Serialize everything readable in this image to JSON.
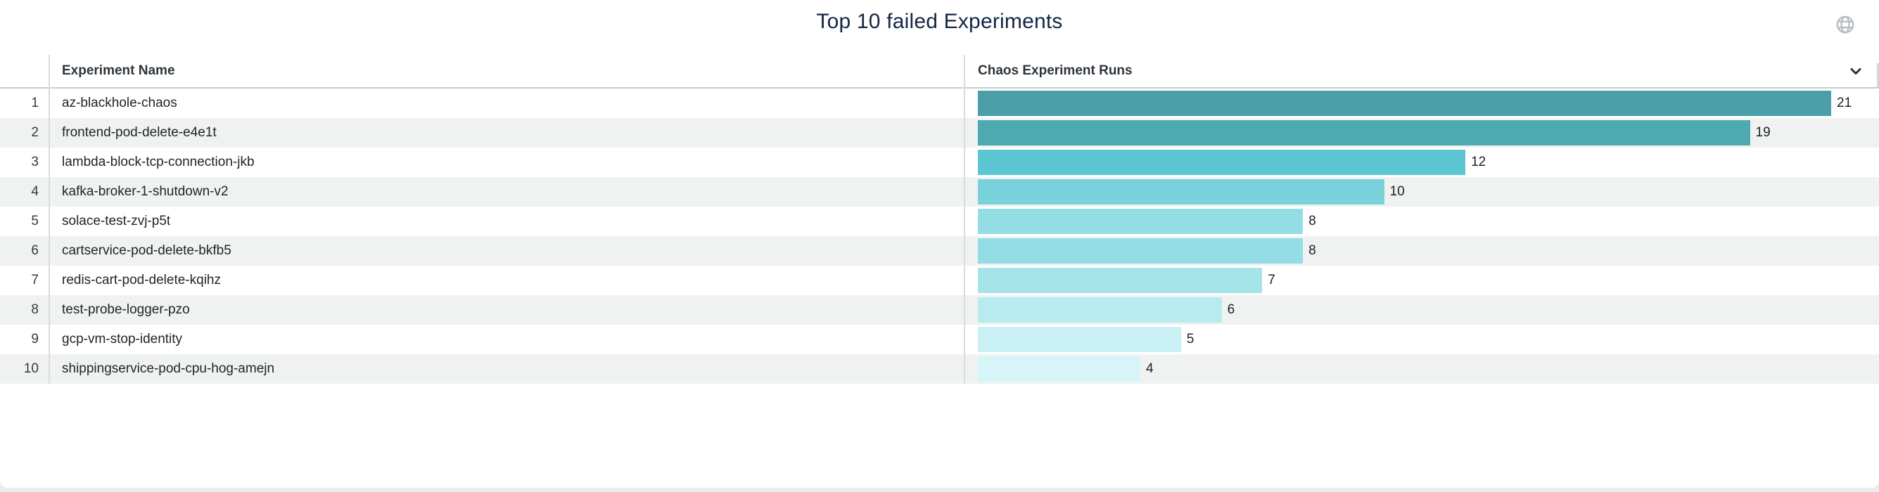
{
  "panel": {
    "title": "Top 10 failed Experiments"
  },
  "icons": {
    "globe": "globe-icon",
    "sort": "chevron-down-icon",
    "globe_color": "#b9bdc3",
    "chevron_color": "#2b3238"
  },
  "table": {
    "columns": {
      "name": "Experiment Name",
      "runs": "Chaos Experiment Runs"
    },
    "rows": [
      {
        "rank": "1",
        "name": "az-blackhole-chaos",
        "runs": 21,
        "color": "#4A9FA8"
      },
      {
        "rank": "2",
        "name": "frontend-pod-delete-e4e1t",
        "runs": 19,
        "color": "#4FA9B1"
      },
      {
        "rank": "3",
        "name": "lambda-block-tcp-connection-jkb",
        "runs": 12,
        "color": "#5BC5D1"
      },
      {
        "rank": "4",
        "name": "kafka-broker-1-shutdown-v2",
        "runs": 10,
        "color": "#78D1DB"
      },
      {
        "rank": "5",
        "name": "solace-test-zvj-p5t",
        "runs": 8,
        "color": "#95DDE5"
      },
      {
        "rank": "6",
        "name": "cartservice-pod-delete-bkfb5",
        "runs": 8,
        "color": "#95DDE5"
      },
      {
        "rank": "7",
        "name": "redis-cart-pod-delete-kqihz",
        "runs": 7,
        "color": "#A6E4EA"
      },
      {
        "rank": "8",
        "name": "test-probe-logger-pzo",
        "runs": 6,
        "color": "#B8EBF0"
      },
      {
        "rank": "9",
        "name": "gcp-vm-stop-identity",
        "runs": 5,
        "color": "#C9F1F5"
      },
      {
        "rank": "10",
        "name": "shippingservice-pod-cpu-hog-amejn",
        "runs": 4,
        "color": "#D6F5F8"
      }
    ]
  },
  "chart_data": {
    "type": "bar",
    "orientation": "horizontal",
    "title": "Top 10 failed Experiments",
    "categories": [
      "az-blackhole-chaos",
      "frontend-pod-delete-e4e1t",
      "lambda-block-tcp-connection-jkb",
      "kafka-broker-1-shutdown-v2",
      "solace-test-zvj-p5t",
      "cartservice-pod-delete-bkfb5",
      "redis-cart-pod-delete-kqihz",
      "test-probe-logger-pzo",
      "gcp-vm-stop-identity",
      "shippingservice-pod-cpu-hog-amejn"
    ],
    "values": [
      21,
      19,
      12,
      10,
      8,
      8,
      7,
      6,
      5,
      4
    ],
    "xlabel": "Chaos Experiment Runs",
    "ylabel": "Experiment Name",
    "xlim": [
      0,
      21
    ],
    "grid": false,
    "legend": false,
    "data_labels": true,
    "bar_colors": [
      "#4A9FA8",
      "#4FA9B1",
      "#5BC5D1",
      "#78D1DB",
      "#95DDE5",
      "#95DDE5",
      "#A6E4EA",
      "#B8EBF0",
      "#C9F1F5",
      "#D6F5F8"
    ],
    "row_stripe_color": "#f0f2f2"
  }
}
